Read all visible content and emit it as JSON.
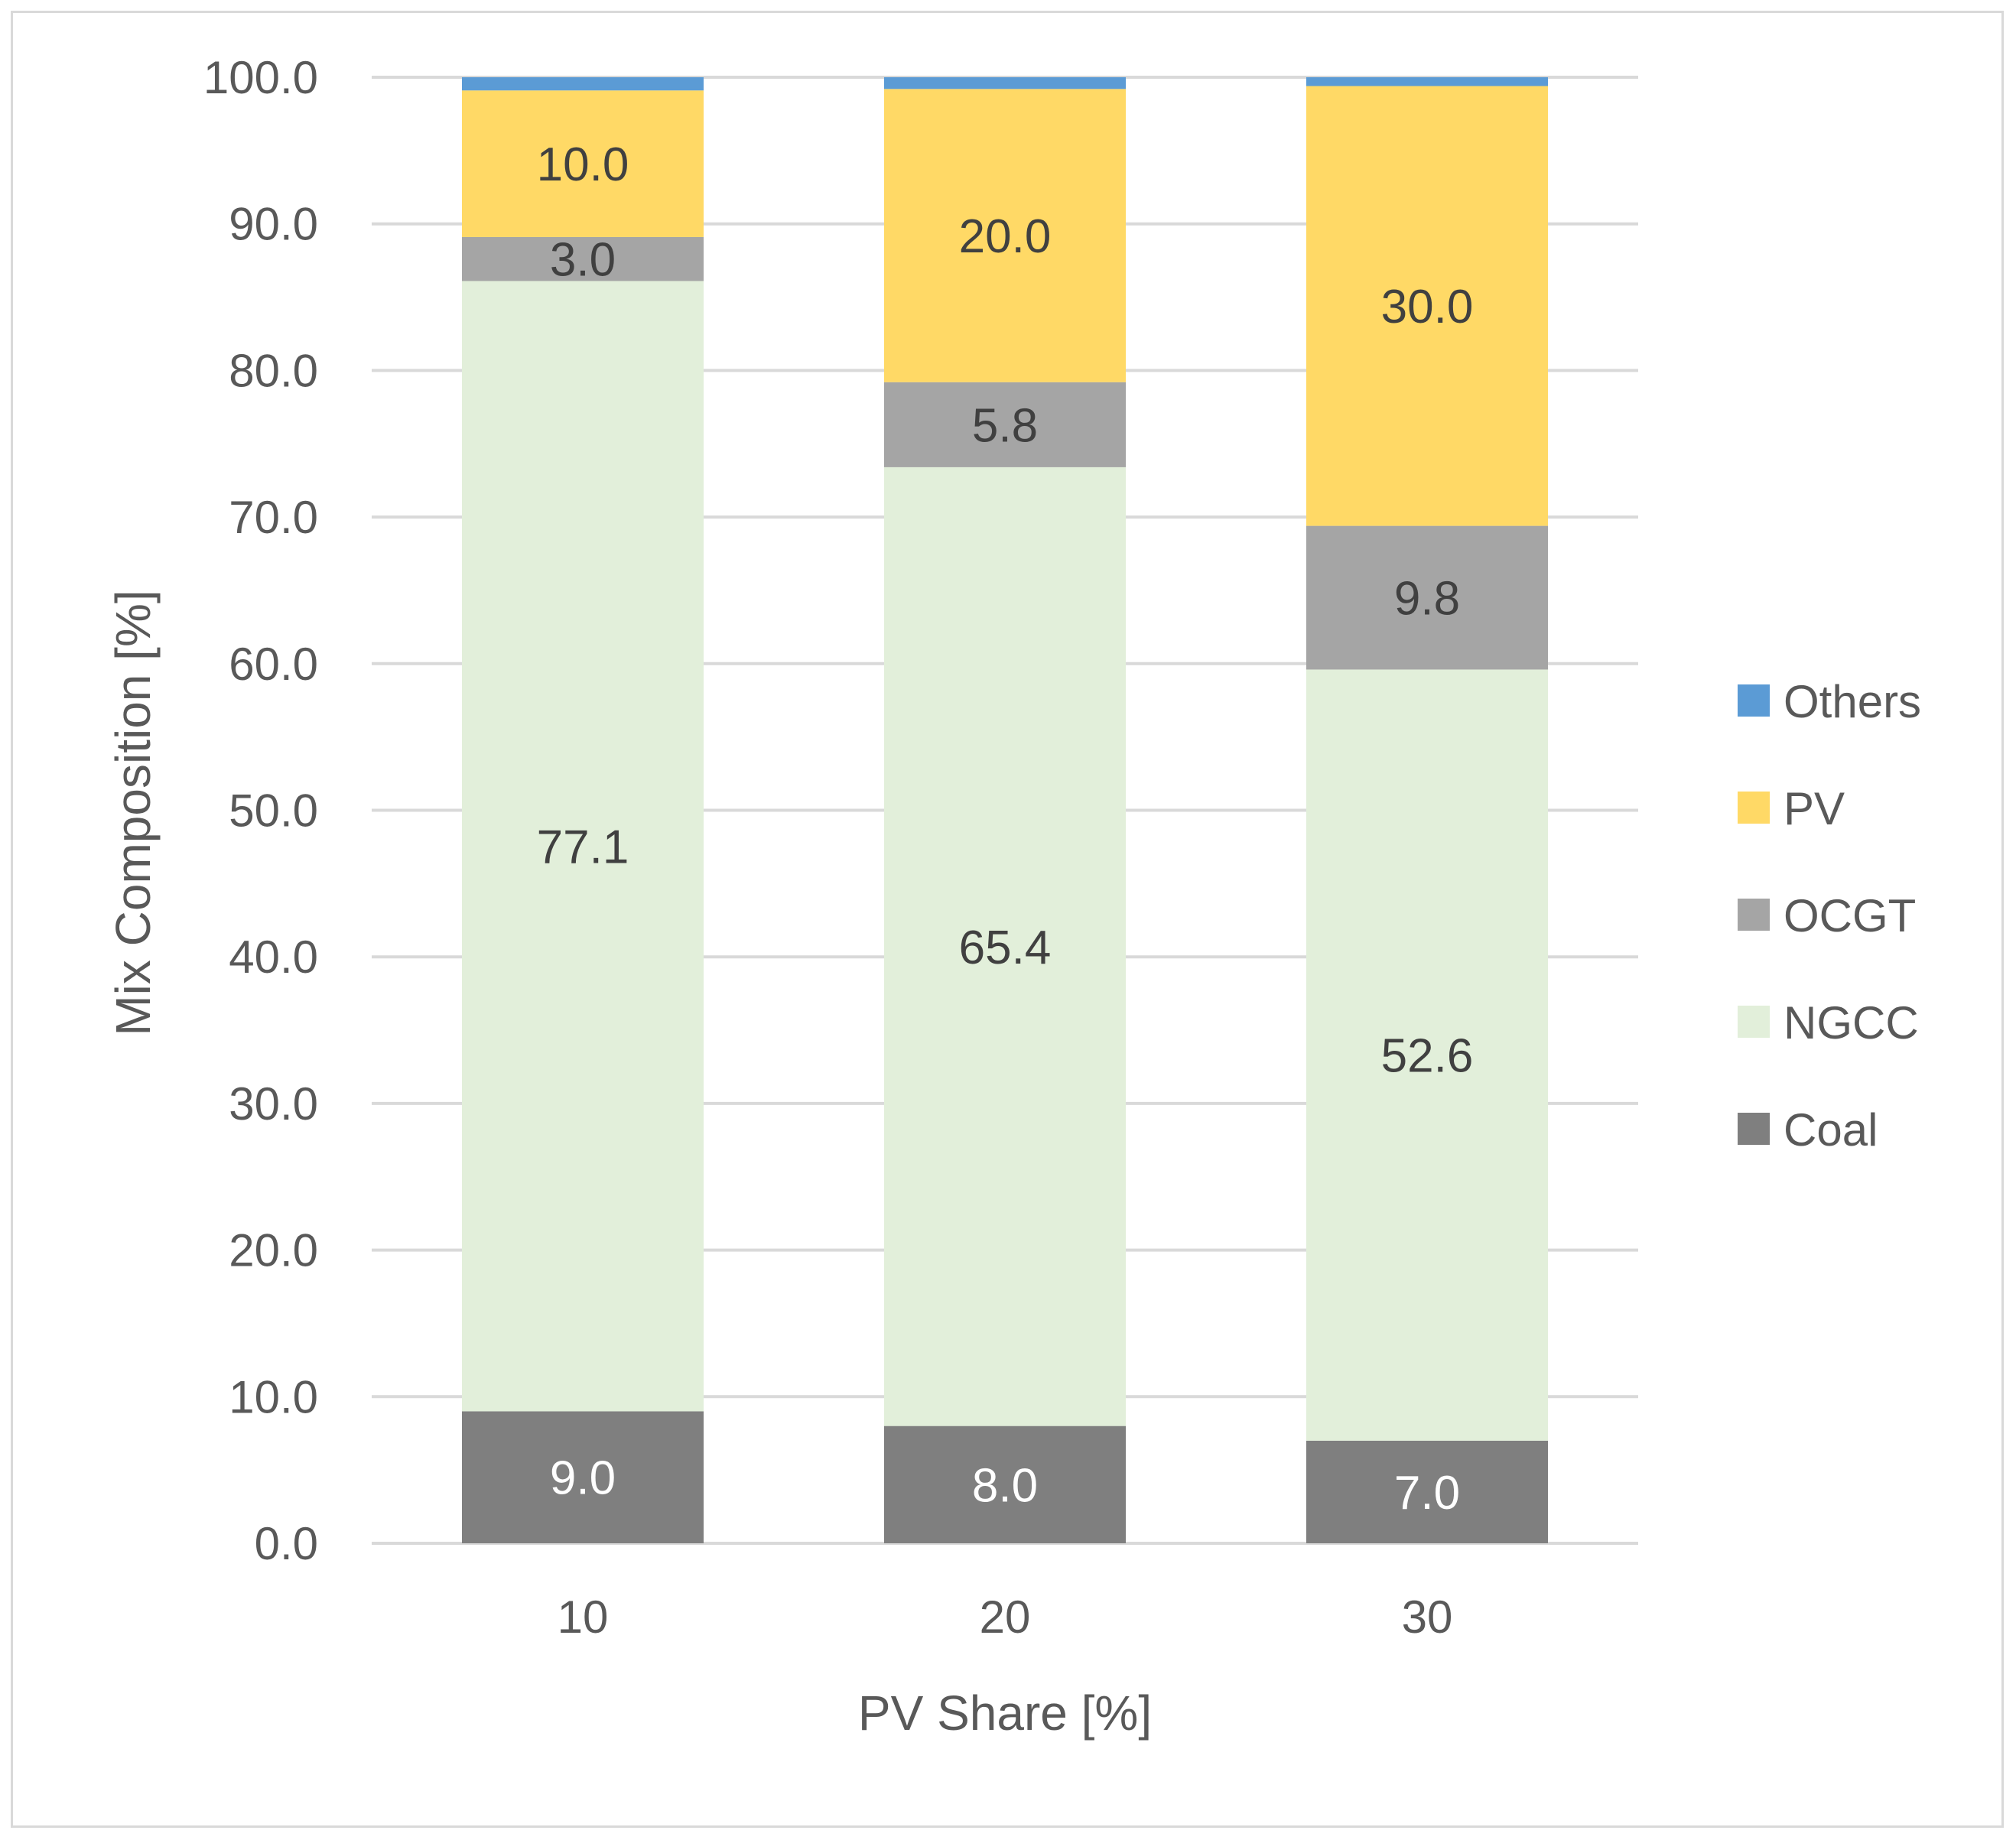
{
  "chart_data": {
    "type": "bar",
    "stacked": true,
    "title": "",
    "xlabel": "PV Share [%]",
    "ylabel": "Mix Composition [%]",
    "ylim": [
      0,
      100
    ],
    "yticks": [
      "0.0",
      "10.0",
      "20.0",
      "30.0",
      "40.0",
      "50.0",
      "60.0",
      "70.0",
      "80.0",
      "90.0",
      "100.0"
    ],
    "categories": [
      "10",
      "20",
      "30"
    ],
    "grid": true,
    "legend_position": "right",
    "series": [
      {
        "name": "Coal",
        "color": "#7f7f7f",
        "label_color": "#ffffff",
        "values": [
          9.0,
          8.0,
          7.0
        ],
        "labels": [
          "9.0",
          "8.0",
          "7.0"
        ]
      },
      {
        "name": "NGCC",
        "color": "#e2efda",
        "label_color": "#404040",
        "values": [
          77.1,
          65.4,
          52.6
        ],
        "labels": [
          "77.1",
          "65.4",
          "52.6"
        ]
      },
      {
        "name": "OCGT",
        "color": "#a5a5a5",
        "label_color": "#404040",
        "values": [
          3.0,
          5.8,
          9.8
        ],
        "labels": [
          "3.0",
          "5.8",
          "9.8"
        ]
      },
      {
        "name": "PV",
        "color": "#ffd966",
        "label_color": "#404040",
        "values": [
          10.0,
          20.0,
          30.0
        ],
        "labels": [
          "10.0",
          "20.0",
          "30.0"
        ]
      },
      {
        "name": "Others",
        "color": "#5b9bd5",
        "label_color": "#404040",
        "values": [
          0.9,
          0.8,
          0.6
        ],
        "labels": []
      }
    ]
  }
}
